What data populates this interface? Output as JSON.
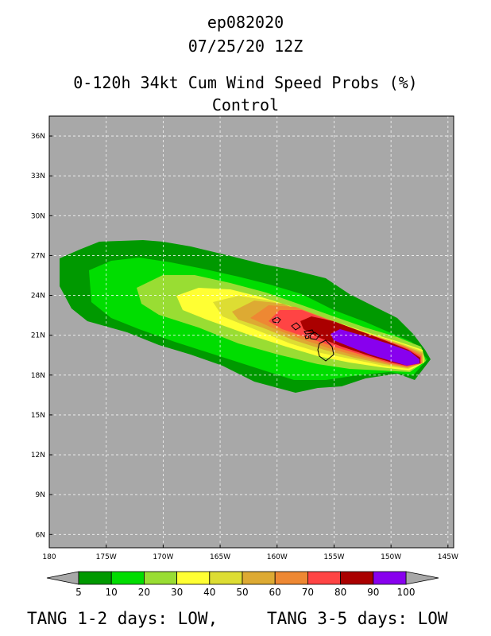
{
  "header": {
    "storm_id": "ep082020",
    "datetime": "07/25/20 12Z",
    "product": "0-120h 34kt Cum Wind Speed Probs (%)",
    "run": "Control"
  },
  "map": {
    "background_color": "#a8a8a8",
    "lat_labels": [
      "36N",
      "33N",
      "30N",
      "27N",
      "24N",
      "21N",
      "18N",
      "15N",
      "12N",
      "9N",
      "6N"
    ],
    "lon_labels": [
      "180",
      "175W",
      "170W",
      "165W",
      "160W",
      "155W",
      "150W",
      "145W"
    ],
    "features": [
      "hawaiian-islands",
      "tropical-cyclone-probability-swath"
    ]
  },
  "colorbar": {
    "levels": [
      "5",
      "10",
      "20",
      "30",
      "40",
      "50",
      "60",
      "70",
      "80",
      "90",
      "100"
    ],
    "colors": [
      "#009900",
      "#00dd00",
      "#99dd33",
      "#ffff33",
      "#dddd33",
      "#ddaa33",
      "#ee8833",
      "#ff4444",
      "#aa0000",
      "#8800ee"
    ],
    "arrow_color": "#a8a8a8"
  },
  "footer": {
    "tang12": "TANG 1-2 days:  LOW,",
    "tang35": "TANG 3-5 days:  LOW"
  }
}
